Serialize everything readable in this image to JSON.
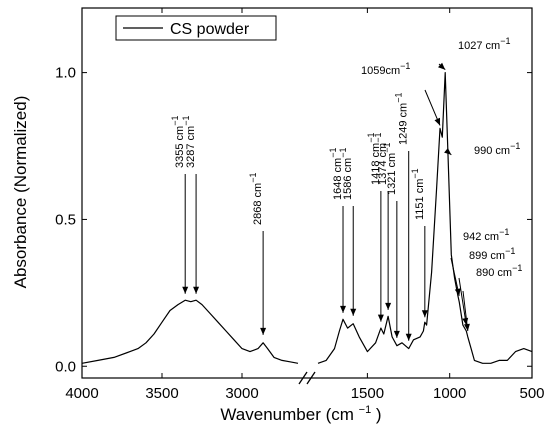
{
  "chart_data": {
    "type": "line",
    "xlabel": "Wavenumber (cm",
    "xlabel_sup": "−1",
    "xlabel_close": ")",
    "ylabel": "Absorbance (Normalized)",
    "x_reversed": true,
    "axis_break_between": [
      2650,
      1800
    ],
    "x_segments": [
      {
        "range": [
          4000,
          2650
        ]
      },
      {
        "range": [
          1800,
          500
        ]
      }
    ],
    "ylim": [
      -0.04,
      1.22
    ],
    "x_ticks": [
      4000,
      3500,
      3000,
      1500,
      1000,
      500
    ],
    "x_tick_labels": [
      "4000",
      "3500",
      "3000",
      "1500",
      "1000",
      "500"
    ],
    "y_ticks": [
      0.0,
      0.5,
      1.0
    ],
    "y_tick_labels": [
      "0.0",
      "0.5",
      "1.0"
    ],
    "legend": {
      "position": "top-left",
      "entries": [
        "CS powder"
      ]
    },
    "series": [
      {
        "name": "CS powder",
        "segment1": {
          "x": [
            4000,
            3900,
            3800,
            3700,
            3650,
            3600,
            3550,
            3500,
            3450,
            3400,
            3355,
            3320,
            3287,
            3250,
            3200,
            3150,
            3100,
            3050,
            3000,
            2950,
            2900,
            2868,
            2840,
            2800,
            2750,
            2700,
            2650
          ],
          "y": [
            0.01,
            0.02,
            0.03,
            0.05,
            0.06,
            0.08,
            0.11,
            0.15,
            0.19,
            0.21,
            0.225,
            0.22,
            0.225,
            0.21,
            0.18,
            0.15,
            0.12,
            0.09,
            0.06,
            0.05,
            0.06,
            0.08,
            0.06,
            0.03,
            0.02,
            0.015,
            0.01
          ]
        },
        "segment2": {
          "x": [
            1800,
            1750,
            1700,
            1670,
            1648,
            1620,
            1586,
            1550,
            1500,
            1450,
            1418,
            1400,
            1374,
            1350,
            1321,
            1290,
            1249,
            1220,
            1180,
            1160,
            1151,
            1140,
            1110,
            1080,
            1059,
            1045,
            1027,
            1010,
            990,
            970,
            950,
            942,
            920,
            899,
            890,
            870,
            850,
            800,
            750,
            700,
            650,
            600,
            550,
            500
          ],
          "y": [
            0.01,
            0.02,
            0.06,
            0.12,
            0.16,
            0.13,
            0.145,
            0.1,
            0.05,
            0.08,
            0.13,
            0.11,
            0.17,
            0.1,
            0.07,
            0.08,
            0.06,
            0.09,
            0.1,
            0.12,
            0.15,
            0.14,
            0.32,
            0.6,
            0.81,
            0.78,
            1.0,
            0.72,
            0.38,
            0.3,
            0.24,
            0.22,
            0.14,
            0.12,
            0.1,
            0.06,
            0.02,
            0.01,
            0.01,
            0.02,
            0.02,
            0.05,
            0.06,
            0.05
          ]
        }
      }
    ],
    "annotations": [
      {
        "x": 3355,
        "label": "3355 cm",
        "sup": "−1"
      },
      {
        "x": 3287,
        "label": "3287 cm",
        "sup": "−1"
      },
      {
        "x": 2868,
        "label": "2868 cm",
        "sup": "−1"
      },
      {
        "x": 1648,
        "label": "1648 cm",
        "sup": "−1"
      },
      {
        "x": 1586,
        "label": "1586 cm",
        "sup": "−1"
      },
      {
        "x": 1418,
        "label": "1418 cm",
        "sup": "−1"
      },
      {
        "x": 1374,
        "label": "1374 cm",
        "sup": "−1"
      },
      {
        "x": 1321,
        "label": "1321 cm",
        "sup": "−1"
      },
      {
        "x": 1249,
        "label": "1249 cm",
        "sup": "−1"
      },
      {
        "x": 1151,
        "label": "1151 cm",
        "sup": "−1"
      },
      {
        "x": 1059,
        "label": "1059cm",
        "sup": "−1"
      },
      {
        "x": 1027,
        "label": "1027 cm",
        "sup": "−1"
      },
      {
        "x": 990,
        "label": "990 cm",
        "sup": "−1"
      },
      {
        "x": 942,
        "label": "942 cm",
        "sup": "−1"
      },
      {
        "x": 899,
        "label": "899 cm",
        "sup": "−1"
      },
      {
        "x": 890,
        "label": "890 cm",
        "sup": "−1"
      }
    ]
  }
}
